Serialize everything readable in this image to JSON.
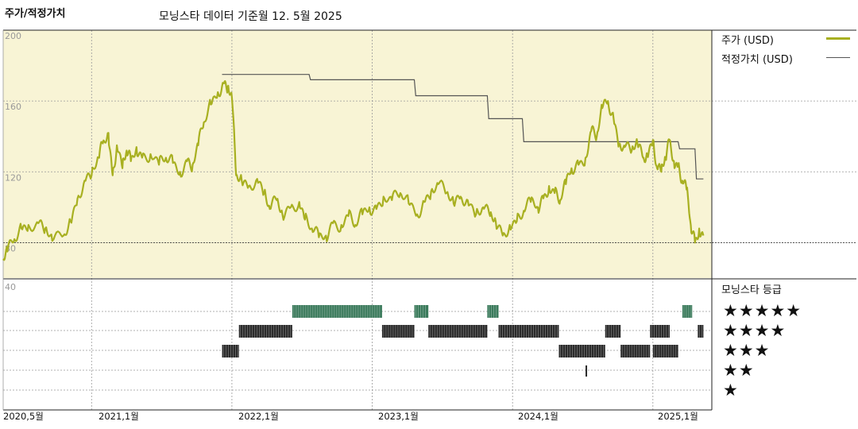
{
  "header": {
    "title": "주가/적정가치",
    "subtitle": "모닝스타 데이터 기준월 12. 5월 2025"
  },
  "legend": {
    "price_label": "주가 (USD)",
    "fair_label": "적정가치 (USD)",
    "rating_title": "모닝스타 등급"
  },
  "colors": {
    "price": "#a8b021",
    "fair": "#555555",
    "plot_bg": "#f8f4d5",
    "rating5": "#3b7b5c",
    "rating_other": "#2a2a2a"
  },
  "chart_data": [
    {
      "type": "line",
      "xlim": [
        2020.37,
        2025.42
      ],
      "ylim": [
        60,
        200
      ],
      "yticks": [
        "200",
        "160",
        "120",
        "80"
      ],
      "ytick_values": [
        200,
        160,
        120,
        80
      ],
      "lower_tick": "40",
      "xtick_labels": [
        "2020,5월",
        "2021,1월",
        "2022,1월",
        "2023,1월",
        "2024,1월",
        "2025,1월"
      ],
      "xtick_values": [
        2020.37,
        2021.0,
        2022.0,
        2023.0,
        2024.0,
        2025.0
      ],
      "reference_line": 80,
      "series": [
        {
          "name": "주가 (USD)",
          "x": [
            2020.37,
            2020.4,
            2020.45,
            2020.5,
            2020.55,
            2020.62,
            2020.67,
            2020.72,
            2020.8,
            2020.85,
            2020.9,
            2020.95,
            2021.0,
            2021.05,
            2021.08,
            2021.12,
            2021.15,
            2021.18,
            2021.22,
            2021.25,
            2021.28,
            2021.32,
            2021.36,
            2021.42,
            2021.48,
            2021.53,
            2021.58,
            2021.63,
            2021.68,
            2021.72,
            2021.76,
            2021.8,
            2021.85,
            2021.9,
            2021.94,
            2021.97,
            2022.0,
            2022.03,
            2022.07,
            2022.12,
            2022.18,
            2022.23,
            2022.27,
            2022.32,
            2022.36,
            2022.42,
            2022.48,
            2022.52,
            2022.57,
            2022.62,
            2022.67,
            2022.72,
            2022.78,
            2022.83,
            2022.88,
            2022.93,
            2022.98,
            2023.03,
            2023.08,
            2023.14,
            2023.2,
            2023.26,
            2023.32,
            2023.37,
            2023.42,
            2023.47,
            2023.53,
            2023.58,
            2023.63,
            2023.68,
            2023.74,
            2023.79,
            2023.84,
            2023.88,
            2023.93,
            2023.98,
            2024.03,
            2024.08,
            2024.13,
            2024.18,
            2024.22,
            2024.26,
            2024.3,
            2024.34,
            2024.38,
            2024.42,
            2024.47,
            2024.52,
            2024.56,
            2024.6,
            2024.64,
            2024.68,
            2024.72,
            2024.76,
            2024.8,
            2024.85,
            2024.89,
            2024.93,
            2024.96,
            2025.0,
            2025.03,
            2025.06,
            2025.09,
            2025.12,
            2025.15,
            2025.18,
            2025.21,
            2025.24,
            2025.27,
            2025.3,
            2025.33,
            2025.36
          ],
          "y": [
            70,
            75,
            82,
            88,
            90,
            91,
            88,
            81,
            84,
            92,
            105,
            115,
            118,
            128,
            136,
            142,
            118,
            135,
            122,
            132,
            126,
            134,
            128,
            130,
            124,
            128,
            125,
            120,
            126,
            124,
            135,
            148,
            158,
            165,
            170,
            168,
            162,
            118,
            115,
            112,
            116,
            108,
            99,
            104,
            96,
            100,
            103,
            93,
            88,
            83,
            84,
            91,
            90,
            95,
            90,
            96,
            100,
            99,
            106,
            104,
            108,
            102,
            96,
            103,
            109,
            113,
            108,
            102,
            106,
            104,
            96,
            100,
            95,
            92,
            84,
            90,
            92,
            98,
            103,
            100,
            105,
            112,
            108,
            104,
            113,
            122,
            124,
            128,
            143,
            140,
            156,
            160,
            150,
            136,
            134,
            132,
            136,
            128,
            130,
            138,
            122,
            120,
            128,
            138,
            126,
            123,
            115,
            110,
            90,
            80,
            88,
            84
          ],
          "color": "#a8b021"
        },
        {
          "name": "적정가치 (USD)",
          "x": [
            2021.93,
            2022.55,
            2022.56,
            2023.3,
            2023.31,
            2023.82,
            2023.83,
            2024.07,
            2024.08,
            2025.18,
            2025.19,
            2025.3,
            2025.31,
            2025.36
          ],
          "y": [
            175,
            175,
            172,
            172,
            163,
            163,
            150,
            150,
            137,
            137,
            133,
            133,
            116,
            116
          ],
          "color": "#555555"
        }
      ]
    },
    {
      "type": "bar",
      "title": "모닝스타 등급",
      "categories": [
        "★★★★★",
        "★★★★",
        "★★★",
        "★★",
        "★"
      ],
      "rating_periods": [
        {
          "stars": 3,
          "start": 2021.93,
          "end": 2022.05
        },
        {
          "stars": 4,
          "start": 2022.05,
          "end": 2022.43
        },
        {
          "stars": 5,
          "start": 2022.43,
          "end": 2023.07
        },
        {
          "stars": 4,
          "start": 2023.07,
          "end": 2023.3
        },
        {
          "stars": 5,
          "start": 2023.3,
          "end": 2023.4
        },
        {
          "stars": 4,
          "start": 2023.4,
          "end": 2023.82
        },
        {
          "stars": 5,
          "start": 2023.82,
          "end": 2023.9
        },
        {
          "stars": 4,
          "start": 2023.9,
          "end": 2024.33
        },
        {
          "stars": 3,
          "start": 2024.33,
          "end": 2024.66
        },
        {
          "stars": 2,
          "start": 2024.52,
          "end": 2024.53
        },
        {
          "stars": 4,
          "start": 2024.66,
          "end": 2024.77
        },
        {
          "stars": 3,
          "start": 2024.77,
          "end": 2024.98
        },
        {
          "stars": 4,
          "start": 2024.98,
          "end": 2025.12
        },
        {
          "stars": 3,
          "start": 2025.0,
          "end": 2025.18
        },
        {
          "stars": 5,
          "start": 2025.21,
          "end": 2025.28
        },
        {
          "stars": 4,
          "start": 2025.32,
          "end": 2025.36
        }
      ]
    }
  ]
}
